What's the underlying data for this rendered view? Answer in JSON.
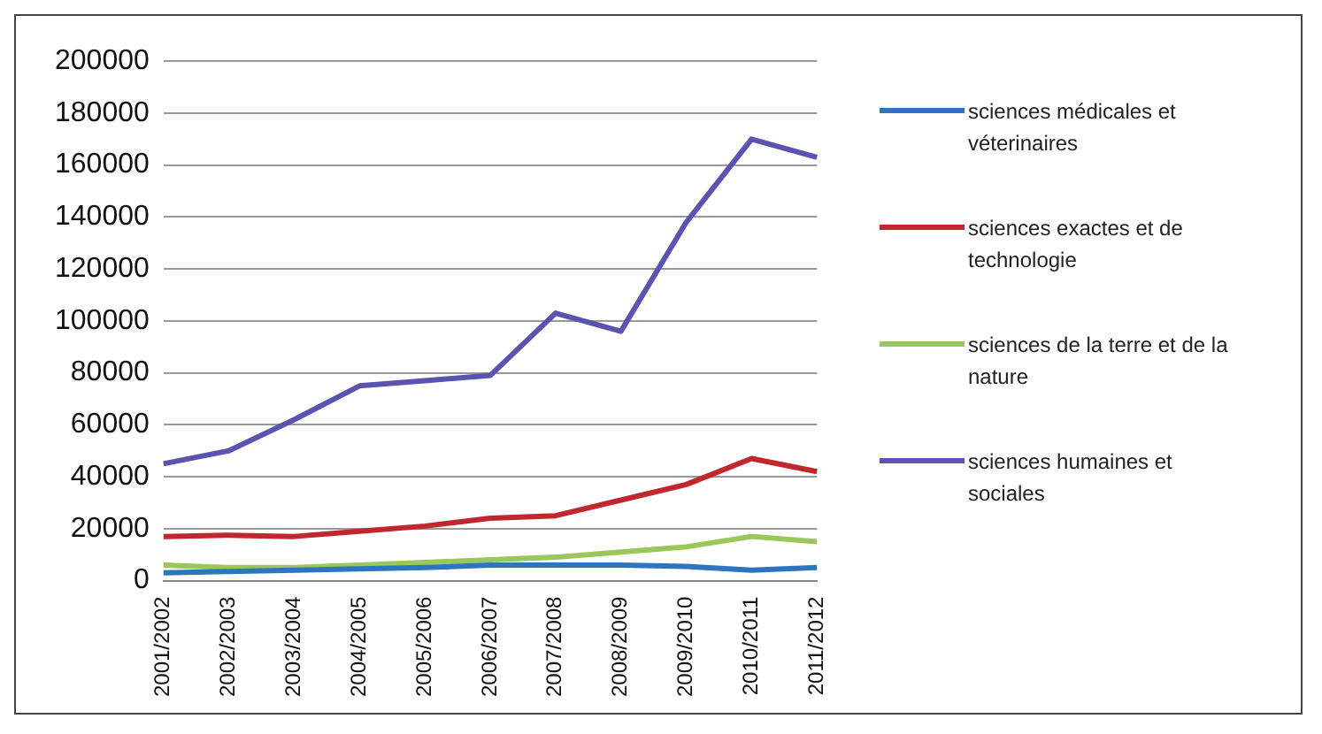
{
  "chart_data": {
    "type": "line",
    "categories": [
      "2001/2002",
      "2002/2003",
      "2003/2004",
      "2004/2005",
      "2005/2006",
      "2006/2007",
      "2007/2008",
      "2008/2009",
      "2009/2010",
      "2010/2011",
      "2011/2012"
    ],
    "series": [
      {
        "name": "sciences médicales et véterinaires",
        "color": "#2e75c0",
        "values": [
          3000,
          3500,
          4000,
          4500,
          5000,
          6000,
          6000,
          6000,
          5500,
          4000,
          5000
        ]
      },
      {
        "name": "sciences exactes et de technologie",
        "color": "#c0282e",
        "values": [
          17000,
          17500,
          17000,
          19000,
          21000,
          24000,
          25000,
          31000,
          37000,
          47000,
          42000
        ]
      },
      {
        "name": "sciences de la terre et de la nature",
        "color": "#9bc659",
        "values": [
          6000,
          5000,
          5000,
          6000,
          7000,
          8000,
          9000,
          11000,
          13000,
          17000,
          15000
        ]
      },
      {
        "name": "sciences humaines et sociales",
        "color": "#5b53b0",
        "values": [
          45000,
          50000,
          62000,
          75000,
          77000,
          79000,
          103000,
          96000,
          138000,
          170000,
          163000
        ]
      }
    ],
    "ylim": [
      0,
      200000
    ],
    "yticks": [
      0,
      20000,
      40000,
      60000,
      80000,
      100000,
      120000,
      140000,
      160000,
      180000,
      200000
    ],
    "grid": "y",
    "legend": "right",
    "marker": "none"
  }
}
